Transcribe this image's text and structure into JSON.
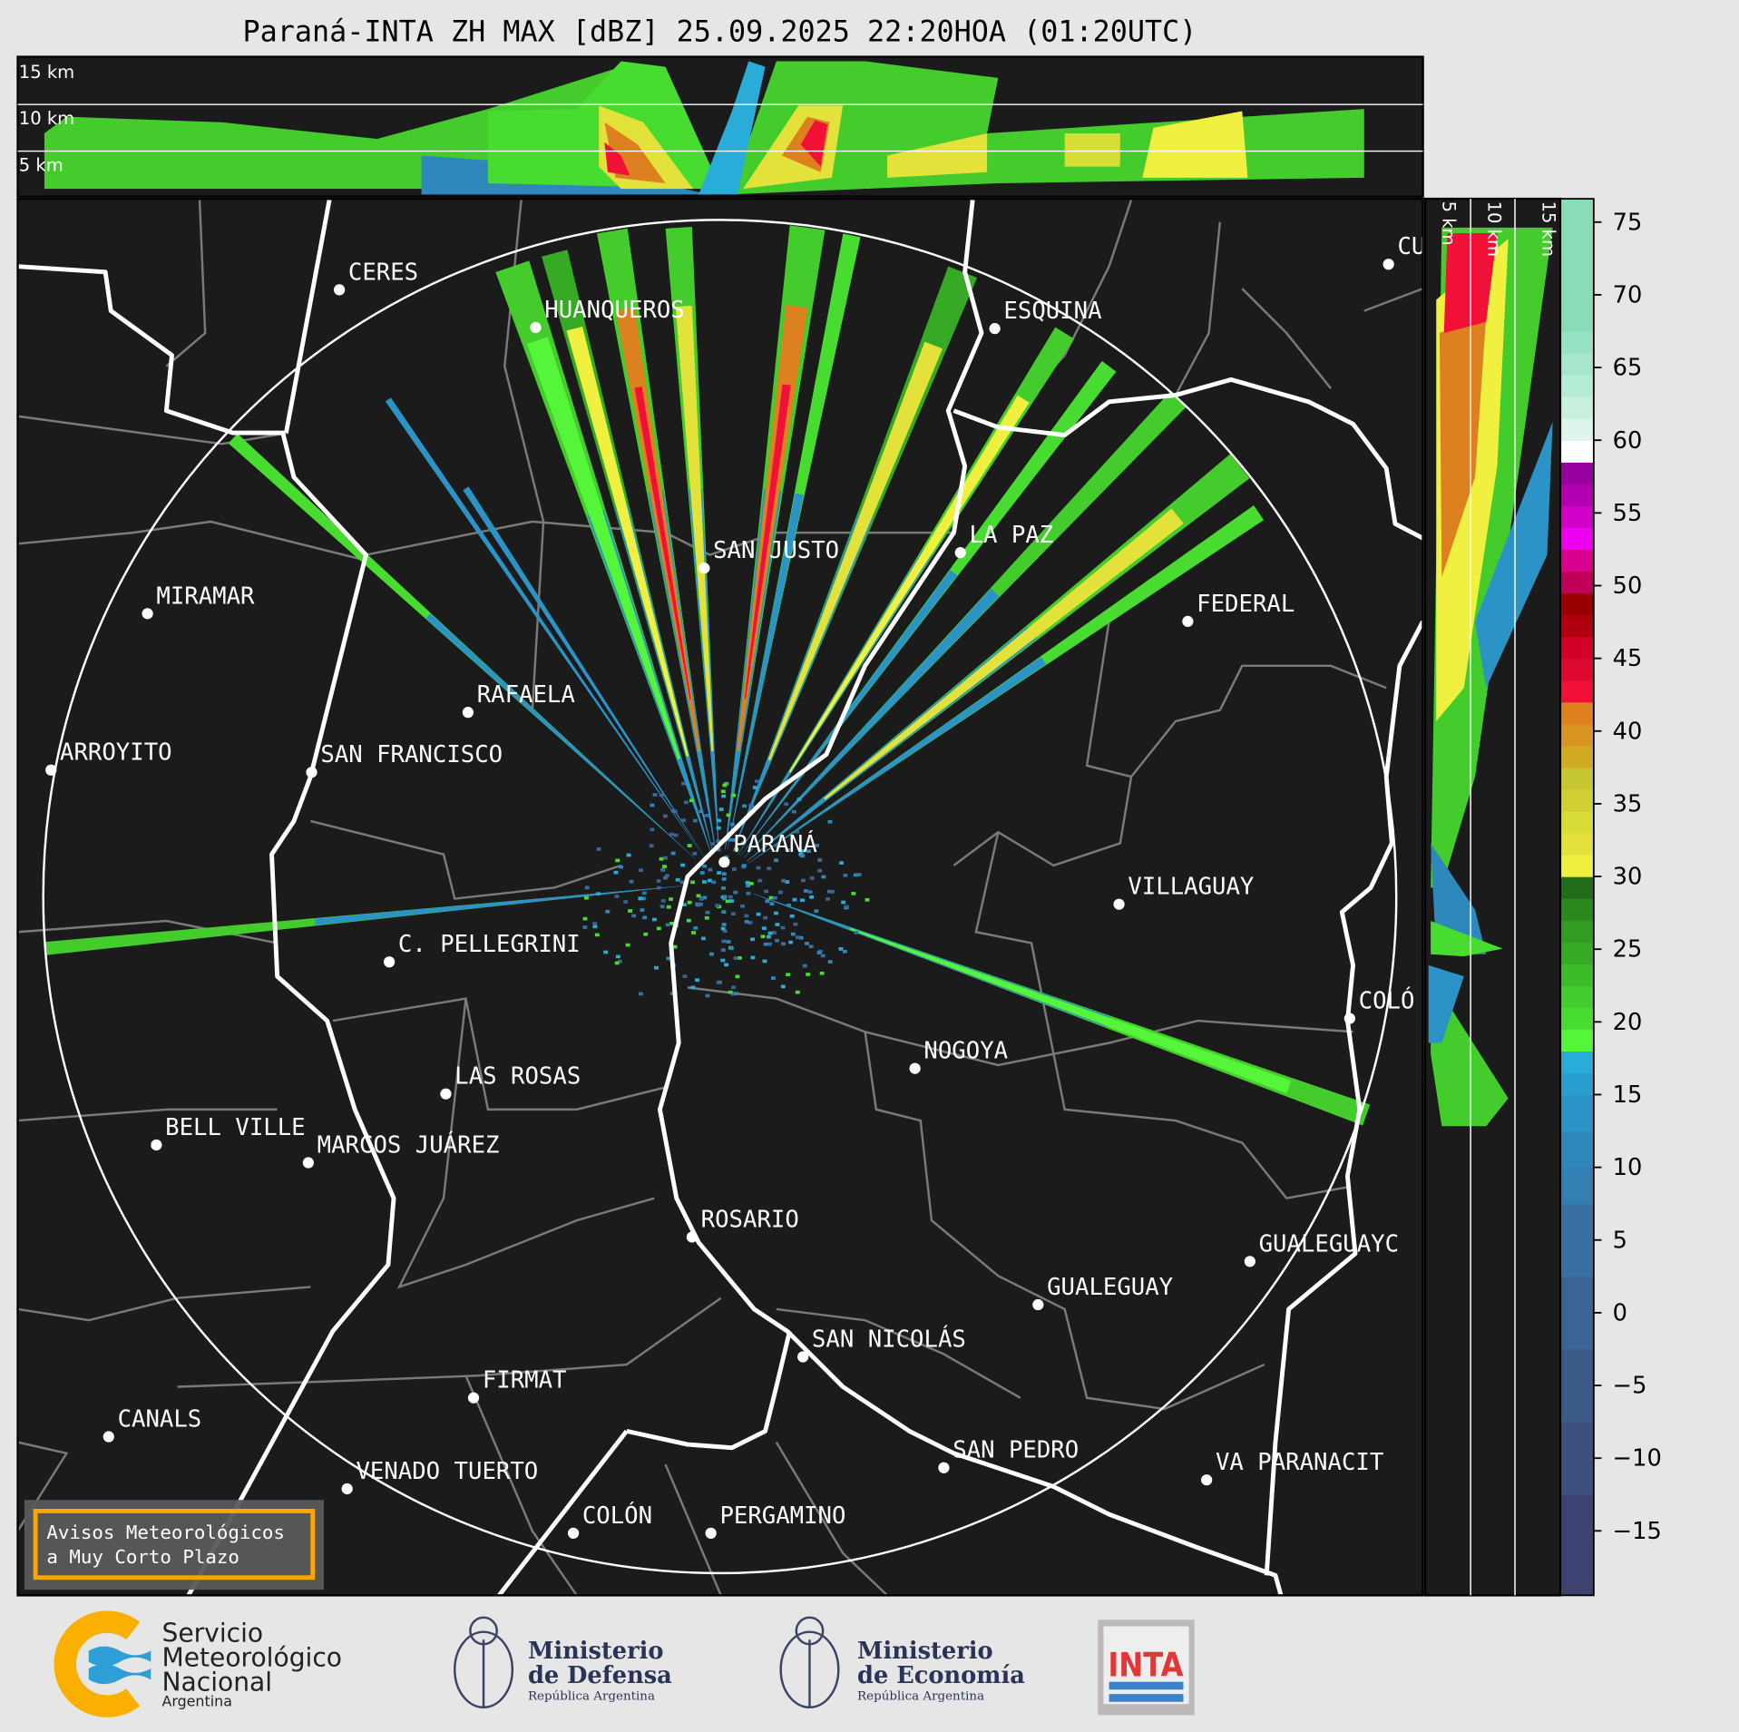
{
  "title": "Paraná-INTA ZH MAX [dBZ] 25.09.2025 22:20HOA (01:20UTC)",
  "top_panel": {
    "labels": [
      "15 km",
      "10 km",
      "5 km"
    ]
  },
  "side_panel": {
    "labels": [
      "5 km",
      "10 km",
      "15 km"
    ]
  },
  "cities": [
    {
      "name": "CERES"
    },
    {
      "name": "HUANQUEROS"
    },
    {
      "name": "ESQUINA"
    },
    {
      "name": "CU"
    },
    {
      "name": "SAN JUSTO"
    },
    {
      "name": "LA PAZ"
    },
    {
      "name": "MIRAMAR"
    },
    {
      "name": "FEDERAL"
    },
    {
      "name": "RAFAELA"
    },
    {
      "name": "ARROYITO"
    },
    {
      "name": "SAN FRANCISCO"
    },
    {
      "name": "PARANÁ"
    },
    {
      "name": "VILLAGUAY"
    },
    {
      "name": "C. PELLEGRINI"
    },
    {
      "name": "COLÓ"
    },
    {
      "name": "NOGOYA"
    },
    {
      "name": "LAS ROSAS"
    },
    {
      "name": "BELL VILLE"
    },
    {
      "name": "MARCOS JUÁREZ"
    },
    {
      "name": "ROSARIO"
    },
    {
      "name": "GUALEGUAYC"
    },
    {
      "name": "GUALEGUAY"
    },
    {
      "name": "SAN NICOLÁS"
    },
    {
      "name": "FIRMAT"
    },
    {
      "name": "CANALS"
    },
    {
      "name": "SAN PEDRO"
    },
    {
      "name": "VA PARANACIT"
    },
    {
      "name": "VENADO TUERTO"
    },
    {
      "name": "COLÓN"
    },
    {
      "name": "PERGAMINO"
    }
  ],
  "notice": {
    "line1": "Avisos Meteorológicos",
    "line2": "a Muy Corto Plazo",
    "border_color": "#ffa500"
  },
  "colorbar": {
    "unit": "dBZ",
    "ticks": [
      "75",
      "70",
      "65",
      "60",
      "55",
      "50",
      "45",
      "40",
      "35",
      "30",
      "25",
      "20",
      "15",
      "10",
      "5",
      "0",
      "−5",
      "−10",
      "−15"
    ],
    "tick_values": [
      75,
      70,
      65,
      60,
      55,
      50,
      45,
      40,
      35,
      30,
      25,
      20,
      15,
      10,
      5,
      0,
      -5,
      -10,
      -15
    ],
    "segments": [
      [
        -20,
        -12.5,
        "#3d4270"
      ],
      [
        -12.5,
        -7.5,
        "#3d507e"
      ],
      [
        -7.5,
        -2.5,
        "#3c5a88"
      ],
      [
        -2.5,
        2.5,
        "#3a6494"
      ],
      [
        2.5,
        7.5,
        "#3870a2"
      ],
      [
        7.5,
        10,
        "#337eb2"
      ],
      [
        10,
        12.5,
        "#2f88bc"
      ],
      [
        12.5,
        15,
        "#2b93c5"
      ],
      [
        15,
        16.5,
        "#289fcf"
      ],
      [
        16.5,
        18,
        "#29acd8"
      ],
      [
        18,
        19.5,
        "#55f53a"
      ],
      [
        19.5,
        21,
        "#48dc30"
      ],
      [
        21,
        22.5,
        "#44cc2c"
      ],
      [
        22.5,
        24,
        "#3cbc28"
      ],
      [
        24,
        25.5,
        "#36aa24"
      ],
      [
        25.5,
        27,
        "#329c22"
      ],
      [
        27,
        28.5,
        "#2a8a1e"
      ],
      [
        28.5,
        30,
        "#226e18"
      ],
      [
        30,
        31.5,
        "#f0f040"
      ],
      [
        31.5,
        33,
        "#e2e23a"
      ],
      [
        33,
        34.5,
        "#d8dc36"
      ],
      [
        34.5,
        36,
        "#d0d034"
      ],
      [
        36,
        37.5,
        "#c6c630"
      ],
      [
        37.5,
        39,
        "#d2aa22"
      ],
      [
        39,
        40.5,
        "#d89420"
      ],
      [
        40.5,
        42,
        "#dc8020"
      ],
      [
        42,
        43.5,
        "#f01038"
      ],
      [
        43.5,
        45,
        "#dc0a30"
      ],
      [
        45,
        46.5,
        "#d00028"
      ],
      [
        46.5,
        48,
        "#b00010"
      ],
      [
        48,
        49.5,
        "#980000"
      ],
      [
        49.5,
        51,
        "#c00058"
      ],
      [
        51,
        52.5,
        "#d8008c"
      ],
      [
        52.5,
        54,
        "#ee00ee"
      ],
      [
        54,
        55.5,
        "#d000c8"
      ],
      [
        55.5,
        57,
        "#b000b0"
      ],
      [
        57,
        58.5,
        "#9800a0"
      ],
      [
        58.5,
        60,
        "#ffffff"
      ],
      [
        60,
        61.5,
        "#ddf5ea"
      ],
      [
        61.5,
        63,
        "#c8f0dc"
      ],
      [
        63,
        64.5,
        "#b4ecd4"
      ],
      [
        64.5,
        66,
        "#a8e6cc"
      ],
      [
        66,
        67.5,
        "#98e2c4"
      ],
      [
        67.5,
        77,
        "#88dcb8"
      ]
    ]
  },
  "logos": {
    "smn": {
      "line1": "Servicio",
      "line2": "Meteorológico",
      "line3": "Nacional",
      "line4": "Argentina"
    },
    "defensa": {
      "line1": "Ministerio",
      "line2": "de Defensa",
      "line3": "República Argentina"
    },
    "economia": {
      "line1": "Ministerio",
      "line2": "de Economía",
      "line3": "República Argentina"
    },
    "inta": {
      "text": "INTA"
    }
  },
  "colors": {
    "background": "#e6e6e6",
    "map_background": "#1b1b1b",
    "borders": "#ffffff",
    "departments": "#808080"
  }
}
